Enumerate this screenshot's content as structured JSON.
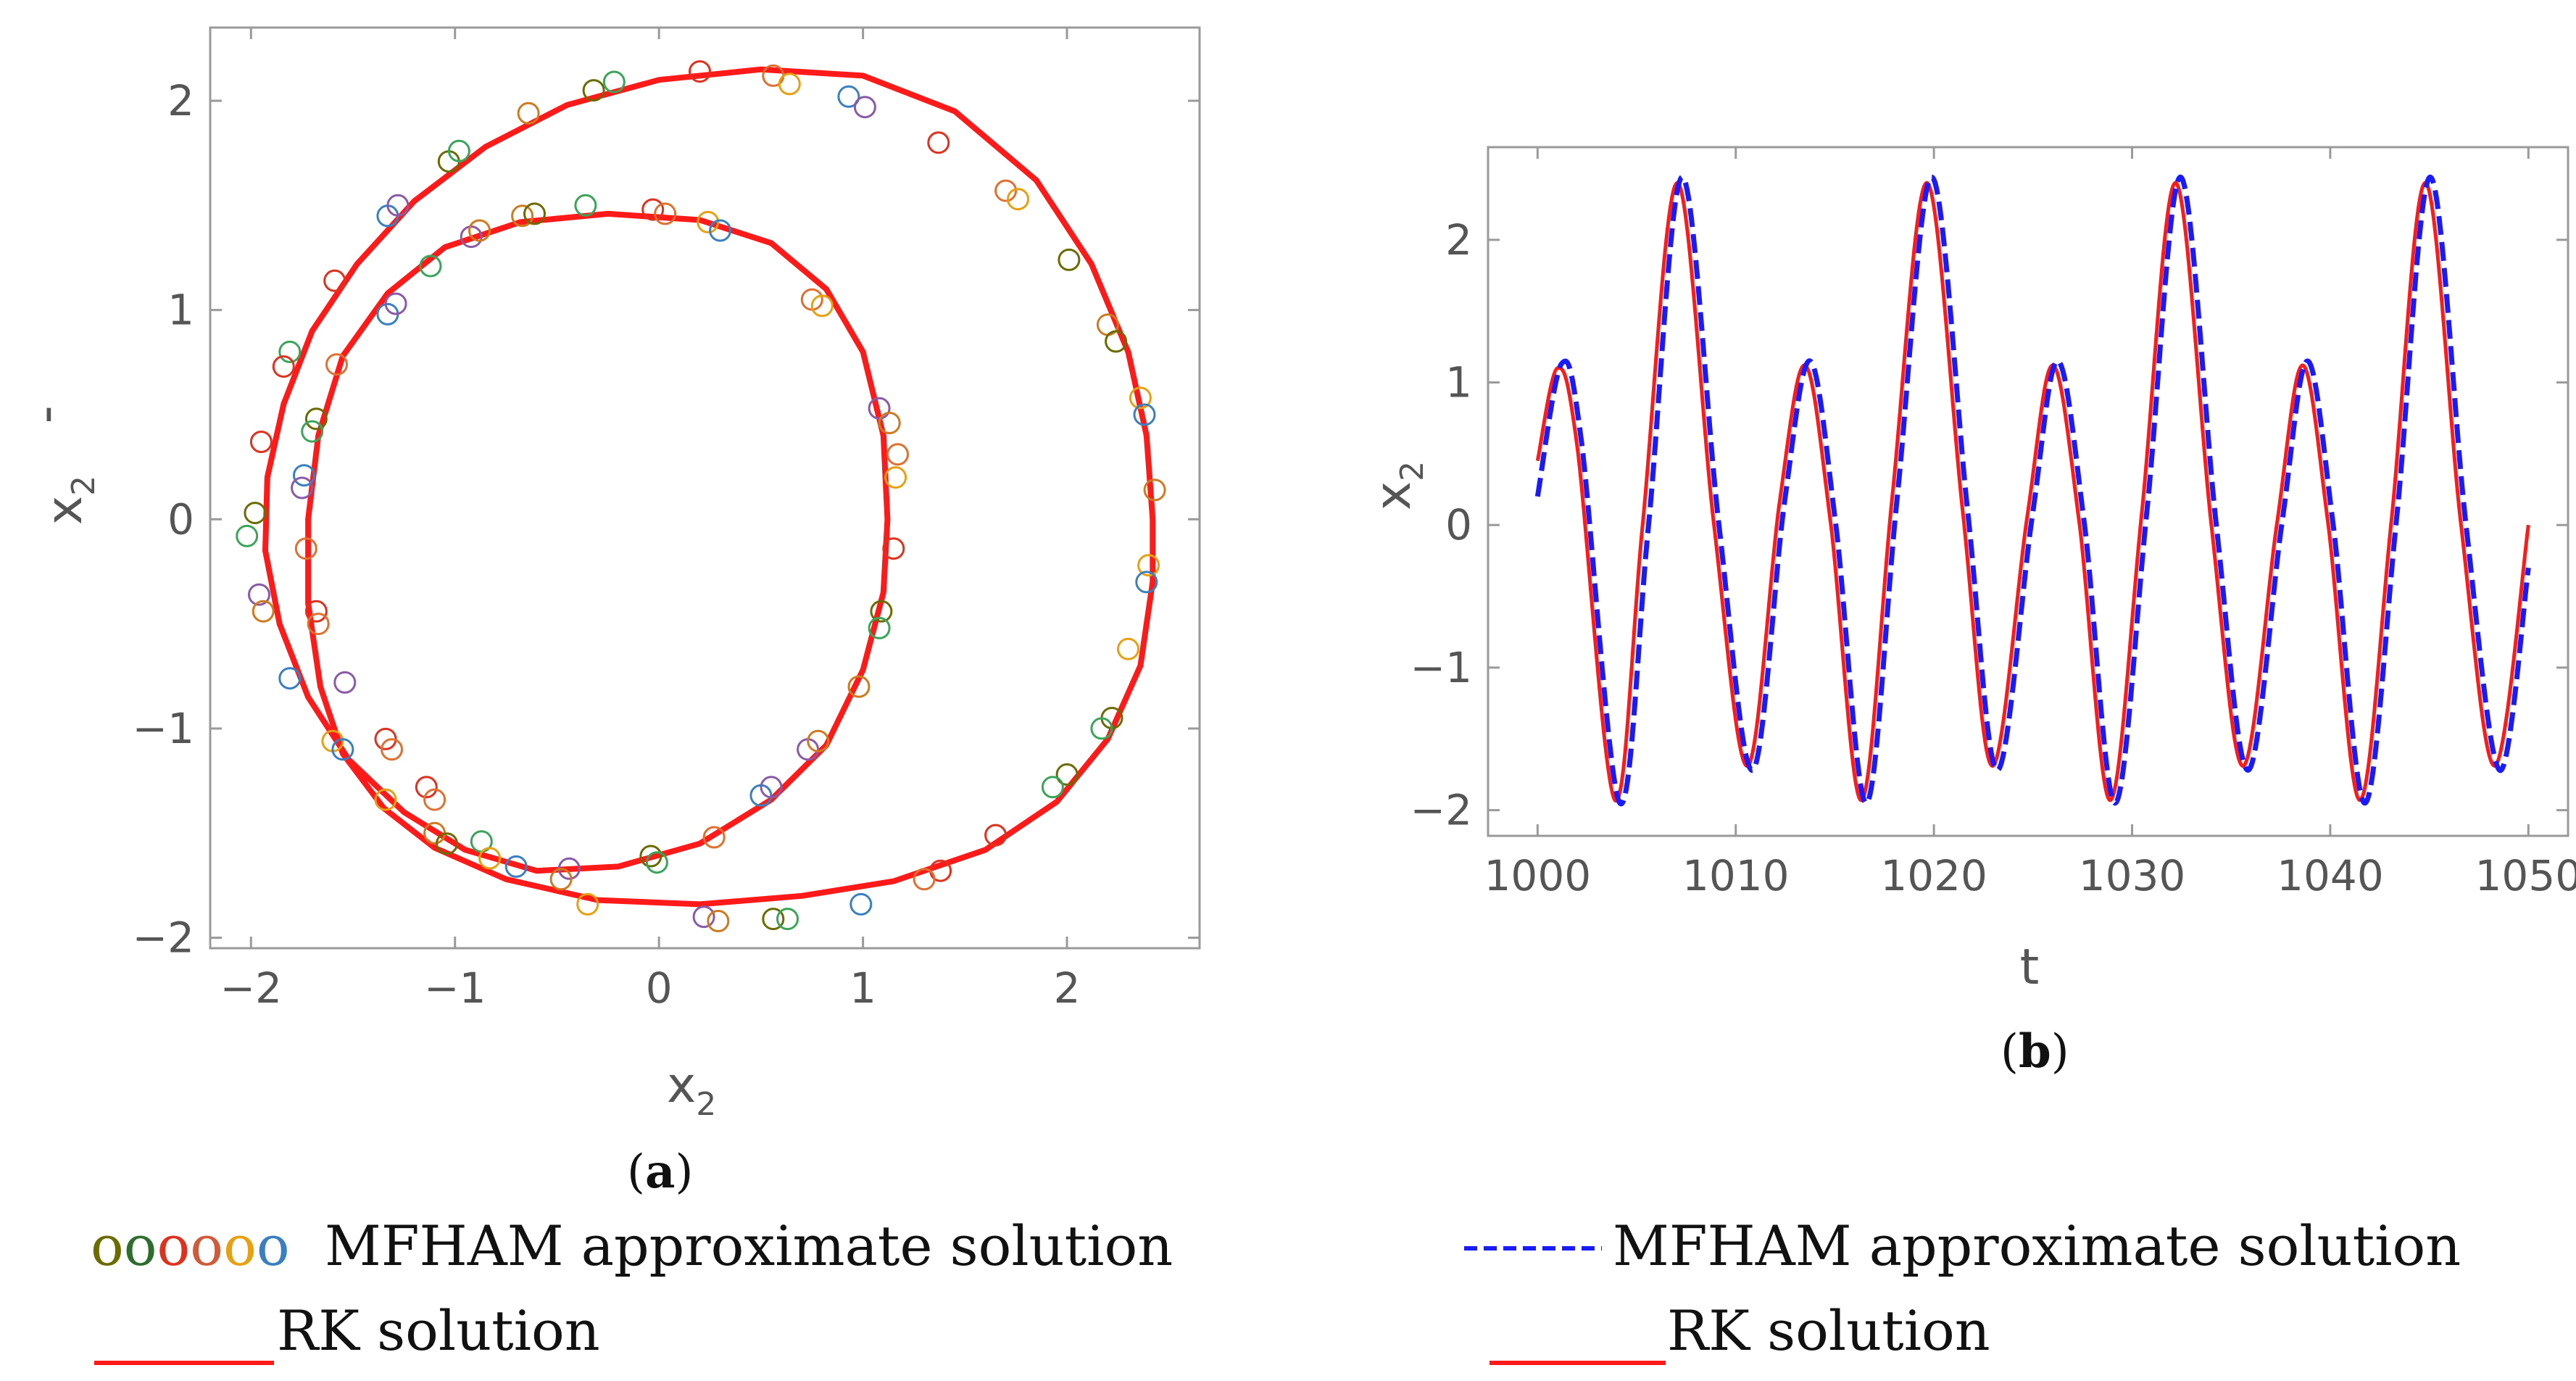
{
  "colors": {
    "rk": "#ff1a1a",
    "mfham": "#1a1aff",
    "frame": "#9a9a9a",
    "markers": [
      "#6b6b00",
      "#3aa55a",
      "#e0301e",
      "#e07030",
      "#e8a010",
      "#3a7fc0",
      "#8a5aa8",
      "#d07a20"
    ]
  },
  "chart_data": [
    {
      "id": "a",
      "type": "scatter",
      "caption": "a",
      "xlabel": "x",
      "xlabel_sub": "2",
      "ylabel": "x",
      "ylabel_sub": "2",
      "ylabel_prime": "'",
      "xlim": [
        -2.2,
        2.65
      ],
      "ylim": [
        -2.05,
        2.35
      ],
      "xticks": [
        -2,
        -1,
        0,
        1,
        2
      ],
      "xtick_labels": [
        "−2",
        "−1",
        "0",
        "1",
        "2"
      ],
      "yticks": [
        -2,
        -1,
        0,
        1,
        2
      ],
      "ytick_labels": [
        "−2",
        "−1",
        "0",
        "1",
        "2"
      ],
      "series": [
        {
          "name": "RK solution",
          "kind": "closed-curve",
          "points": [
            [
              2.42,
              0.0
            ],
            [
              2.42,
              -0.3
            ],
            [
              2.36,
              -0.7
            ],
            [
              2.2,
              -1.05
            ],
            [
              1.95,
              -1.35
            ],
            [
              1.6,
              -1.58
            ],
            [
              1.15,
              -1.73
            ],
            [
              0.7,
              -1.8
            ],
            [
              0.2,
              -1.84
            ],
            [
              -0.3,
              -1.82
            ],
            [
              -0.75,
              -1.72
            ],
            [
              -1.1,
              -1.57
            ],
            [
              -1.35,
              -1.38
            ],
            [
              -1.55,
              -1.12
            ],
            [
              -1.66,
              -0.8
            ],
            [
              -1.72,
              -0.4
            ],
            [
              -1.72,
              0.0
            ],
            [
              -1.67,
              0.4
            ],
            [
              -1.55,
              0.78
            ],
            [
              -1.33,
              1.08
            ],
            [
              -1.05,
              1.3
            ],
            [
              -0.68,
              1.42
            ],
            [
              -0.25,
              1.46
            ],
            [
              0.2,
              1.43
            ],
            [
              0.55,
              1.32
            ],
            [
              0.82,
              1.1
            ],
            [
              1.0,
              0.8
            ],
            [
              1.1,
              0.4
            ],
            [
              1.12,
              0.0
            ],
            [
              1.1,
              -0.35
            ],
            [
              1.0,
              -0.72
            ],
            [
              0.82,
              -1.08
            ],
            [
              0.55,
              -1.34
            ],
            [
              0.2,
              -1.55
            ],
            [
              -0.2,
              -1.66
            ],
            [
              -0.6,
              -1.68
            ],
            [
              -0.95,
              -1.58
            ],
            [
              -1.25,
              -1.4
            ],
            [
              -1.52,
              -1.15
            ],
            [
              -1.72,
              -0.85
            ],
            [
              -1.86,
              -0.5
            ],
            [
              -1.93,
              -0.15
            ],
            [
              -1.92,
              0.2
            ],
            [
              -1.84,
              0.55
            ],
            [
              -1.7,
              0.9
            ],
            [
              -1.48,
              1.22
            ],
            [
              -1.2,
              1.52
            ],
            [
              -0.85,
              1.78
            ],
            [
              -0.45,
              1.98
            ],
            [
              0.0,
              2.1
            ],
            [
              0.5,
              2.15
            ],
            [
              1.0,
              2.12
            ],
            [
              1.45,
              1.95
            ],
            [
              1.85,
              1.62
            ],
            [
              2.12,
              1.22
            ],
            [
              2.3,
              0.8
            ],
            [
              2.39,
              0.4
            ],
            [
              2.42,
              0.0
            ]
          ]
        },
        {
          "name": "MFHAM approximate solution",
          "kind": "markers",
          "points": [
            [
              -0.32,
              2.05
            ],
            [
              -0.22,
              2.09
            ],
            [
              0.2,
              2.14
            ],
            [
              0.56,
              2.12
            ],
            [
              0.64,
              2.08
            ],
            [
              0.93,
              2.02
            ],
            [
              1.01,
              1.97
            ],
            [
              -0.64,
              1.94
            ],
            [
              -1.03,
              1.71
            ],
            [
              -0.98,
              1.76
            ],
            [
              1.37,
              1.8
            ],
            [
              1.7,
              1.57
            ],
            [
              1.76,
              1.53
            ],
            [
              -1.33,
              1.45
            ],
            [
              -1.28,
              1.5
            ],
            [
              -0.67,
              1.45
            ],
            [
              -0.61,
              1.46
            ],
            [
              -0.36,
              1.5
            ],
            [
              -0.03,
              1.48
            ],
            [
              0.03,
              1.46
            ],
            [
              0.24,
              1.42
            ],
            [
              0.3,
              1.38
            ],
            [
              -0.92,
              1.35
            ],
            [
              -0.88,
              1.38
            ],
            [
              2.01,
              1.24
            ],
            [
              -1.12,
              1.21
            ],
            [
              -1.59,
              1.14
            ],
            [
              0.75,
              1.05
            ],
            [
              0.8,
              1.02
            ],
            [
              -1.33,
              0.98
            ],
            [
              -1.29,
              1.03
            ],
            [
              2.2,
              0.93
            ],
            [
              2.24,
              0.85
            ],
            [
              -1.81,
              0.8
            ],
            [
              -1.84,
              0.73
            ],
            [
              -1.58,
              0.74
            ],
            [
              2.36,
              0.58
            ],
            [
              2.38,
              0.5
            ],
            [
              1.08,
              0.53
            ],
            [
              1.13,
              0.46
            ],
            [
              -1.68,
              0.48
            ],
            [
              -1.7,
              0.42
            ],
            [
              -1.95,
              0.37
            ],
            [
              1.17,
              0.31
            ],
            [
              1.16,
              0.2
            ],
            [
              -1.74,
              0.21
            ],
            [
              -1.75,
              0.15
            ],
            [
              2.43,
              0.14
            ],
            [
              -1.98,
              0.03
            ],
            [
              -2.02,
              -0.08
            ],
            [
              1.15,
              -0.14
            ],
            [
              -1.73,
              -0.14
            ],
            [
              2.4,
              -0.22
            ],
            [
              2.39,
              -0.3
            ],
            [
              -1.96,
              -0.36
            ],
            [
              -1.94,
              -0.44
            ],
            [
              1.09,
              -0.44
            ],
            [
              1.08,
              -0.52
            ],
            [
              -1.68,
              -0.44
            ],
            [
              -1.67,
              -0.5
            ],
            [
              2.3,
              -0.62
            ],
            [
              -1.81,
              -0.76
            ],
            [
              -1.54,
              -0.78
            ],
            [
              0.98,
              -0.8
            ],
            [
              2.22,
              -0.95
            ],
            [
              2.17,
              -1.0
            ],
            [
              -1.34,
              -1.05
            ],
            [
              -1.31,
              -1.1
            ],
            [
              -1.6,
              -1.06
            ],
            [
              -1.55,
              -1.1
            ],
            [
              0.73,
              -1.1
            ],
            [
              0.78,
              -1.06
            ],
            [
              2.0,
              -1.22
            ],
            [
              1.93,
              -1.28
            ],
            [
              -1.14,
              -1.28
            ],
            [
              -1.1,
              -1.34
            ],
            [
              -1.34,
              -1.34
            ],
            [
              0.5,
              -1.32
            ],
            [
              0.55,
              -1.28
            ],
            [
              -1.1,
              -1.5
            ],
            [
              -1.04,
              -1.55
            ],
            [
              -0.87,
              -1.54
            ],
            [
              1.65,
              -1.51
            ],
            [
              0.27,
              -1.52
            ],
            [
              -0.83,
              -1.62
            ],
            [
              -0.7,
              -1.66
            ],
            [
              -0.44,
              -1.67
            ],
            [
              -0.48,
              -1.72
            ],
            [
              -0.04,
              -1.61
            ],
            [
              -0.01,
              -1.64
            ],
            [
              1.38,
              -1.68
            ],
            [
              1.3,
              -1.72
            ],
            [
              -0.35,
              -1.84
            ],
            [
              0.99,
              -1.84
            ],
            [
              0.22,
              -1.9
            ],
            [
              0.29,
              -1.92
            ],
            [
              0.56,
              -1.91
            ],
            [
              0.63,
              -1.91
            ]
          ]
        }
      ],
      "legend": {
        "marker_glyphs": [
          "o",
          "o",
          "o",
          "o",
          "o",
          "o"
        ],
        "mfham_label": "MFHAM approximate solution",
        "rk_label": "RK solution"
      }
    },
    {
      "id": "b",
      "type": "line",
      "caption": "b",
      "xlabel": "t",
      "ylabel": "x",
      "ylabel_sub": "2",
      "xlim": [
        997.5,
        1052
      ],
      "ylim": [
        -2.18,
        2.65
      ],
      "xticks": [
        1000,
        1010,
        1020,
        1030,
        1040,
        1050
      ],
      "xtick_labels": [
        "1000",
        "1010",
        "1020",
        "1030",
        "1040",
        "1050"
      ],
      "yticks": [
        -2,
        -1,
        0,
        1,
        2
      ],
      "ytick_labels": [
        "−2",
        "−1",
        "0",
        "1",
        "2"
      ],
      "series": [
        {
          "name": "RK solution",
          "style": "solid",
          "points": [
            [
              1000.0,
              0.45
            ],
            [
              1001.0,
              1.1
            ],
            [
              1002.0,
              0.55
            ],
            [
              1003.9,
              -1.93
            ],
            [
              1005.3,
              0.0
            ],
            [
              1007.05,
              2.4
            ],
            [
              1008.9,
              0.0
            ],
            [
              1010.6,
              -1.69
            ],
            [
              1012.2,
              0.15
            ],
            [
              1013.5,
              1.12
            ],
            [
              1014.8,
              0.0
            ],
            [
              1016.35,
              -1.93
            ],
            [
              1017.9,
              0.2
            ],
            [
              1019.65,
              2.4
            ],
            [
              1021.45,
              0.1
            ],
            [
              1022.95,
              -1.69
            ],
            [
              1024.7,
              0.05
            ],
            [
              1026.0,
              1.12
            ],
            [
              1027.35,
              0.0
            ],
            [
              1028.9,
              -1.93
            ],
            [
              1030.5,
              0.1
            ],
            [
              1032.2,
              2.4
            ],
            [
              1034.0,
              0.0
            ],
            [
              1035.6,
              -1.69
            ],
            [
              1037.3,
              0.0
            ],
            [
              1038.6,
              1.12
            ],
            [
              1039.9,
              0.0
            ],
            [
              1041.5,
              -1.93
            ],
            [
              1043.1,
              0.05
            ],
            [
              1044.8,
              2.4
            ],
            [
              1046.6,
              0.0
            ],
            [
              1048.3,
              -1.69
            ],
            [
              1050.0,
              0.0
            ]
          ]
        },
        {
          "name": "MFHAM approximate solution",
          "style": "dashed",
          "points": [
            [
              1000.0,
              0.2
            ],
            [
              1001.2,
              1.13
            ],
            [
              1002.2,
              0.6
            ],
            [
              1004.15,
              -1.95
            ],
            [
              1005.6,
              0.0
            ],
            [
              1007.3,
              2.44
            ],
            [
              1009.15,
              0.0
            ],
            [
              1010.85,
              -1.72
            ],
            [
              1012.45,
              0.15
            ],
            [
              1013.75,
              1.15
            ],
            [
              1015.05,
              0.0
            ],
            [
              1016.6,
              -1.95
            ],
            [
              1018.15,
              0.2
            ],
            [
              1019.9,
              2.44
            ],
            [
              1021.7,
              0.1
            ],
            [
              1023.2,
              -1.72
            ],
            [
              1024.95,
              0.05
            ],
            [
              1026.25,
              1.15
            ],
            [
              1027.6,
              0.0
            ],
            [
              1029.15,
              -1.95
            ],
            [
              1030.75,
              0.1
            ],
            [
              1032.45,
              2.44
            ],
            [
              1034.25,
              0.0
            ],
            [
              1035.85,
              -1.72
            ],
            [
              1037.55,
              0.0
            ],
            [
              1038.85,
              1.15
            ],
            [
              1040.15,
              0.0
            ],
            [
              1041.75,
              -1.95
            ],
            [
              1043.35,
              0.05
            ],
            [
              1045.05,
              2.44
            ],
            [
              1046.85,
              0.0
            ],
            [
              1048.55,
              -1.72
            ],
            [
              1050.0,
              -0.3
            ]
          ]
        }
      ],
      "legend": {
        "mfham_label": "MFHAM approximate solution",
        "rk_label": "RK solution"
      }
    }
  ]
}
